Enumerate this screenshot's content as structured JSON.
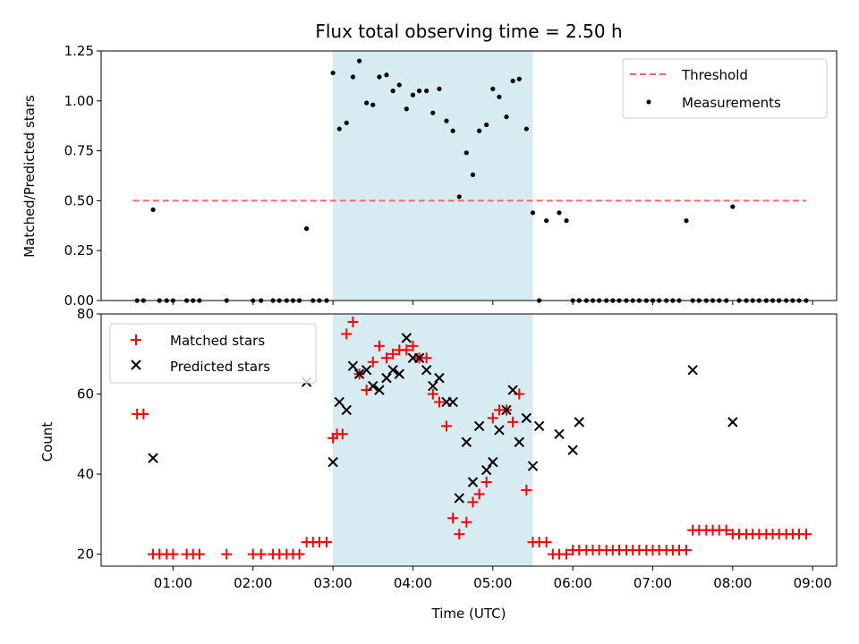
{
  "chart_data": [
    {
      "type": "scatter",
      "panel": "top",
      "title": "Flux total observing time = 2.50 h",
      "xlabel": "",
      "ylabel": "Matched/Predicted stars",
      "xlim": [
        0.1,
        9.3
      ],
      "ylim": [
        0,
        1.25
      ],
      "yticks": [
        0,
        0.25,
        0.5,
        0.75,
        1.0,
        1.25
      ],
      "ytick_labels": [
        "0.00",
        "0.25",
        "0.50",
        "0.75",
        "1.00",
        "1.25"
      ],
      "shaded_region": {
        "x": [
          3.0,
          5.5
        ],
        "color": "#add8e6"
      },
      "legend": {
        "placement": "top-right"
      },
      "series": [
        {
          "name": "Threshold",
          "kind": "line",
          "style": "dashed",
          "color": "#ff6666",
          "x": [
            0.5,
            8.92
          ],
          "y": [
            0.5,
            0.5
          ]
        },
        {
          "name": "Measurements",
          "kind": "scatter",
          "marker": "dot",
          "color": "#000000",
          "x": [
            0.55,
            0.63,
            0.75,
            0.83,
            0.92,
            1.0,
            1.17,
            1.25,
            1.33,
            1.67,
            2.0,
            2.1,
            2.25,
            2.33,
            2.42,
            2.5,
            2.58,
            2.67,
            2.75,
            2.83,
            2.92,
            3.0,
            3.08,
            3.17,
            3.25,
            3.33,
            3.42,
            3.5,
            3.58,
            3.67,
            3.75,
            3.83,
            3.92,
            4.0,
            4.08,
            4.17,
            4.25,
            4.33,
            4.42,
            4.5,
            4.58,
            4.67,
            4.75,
            4.83,
            4.92,
            5.0,
            5.08,
            5.17,
            5.25,
            5.33,
            5.42,
            5.5,
            5.58,
            5.67,
            5.83,
            5.92,
            6.0,
            6.08,
            6.17,
            6.25,
            6.33,
            6.42,
            6.5,
            6.58,
            6.67,
            6.75,
            6.83,
            6.92,
            7.0,
            7.08,
            7.17,
            7.25,
            7.33,
            7.42,
            7.5,
            7.58,
            7.67,
            7.75,
            7.83,
            7.92,
            8.0,
            8.08,
            8.17,
            8.25,
            8.33,
            8.42,
            8.5,
            8.58,
            8.67,
            8.75,
            8.83,
            8.92
          ],
          "y": [
            0,
            0,
            0.455,
            0,
            0,
            0,
            0,
            0,
            0,
            0,
            0,
            0,
            0,
            0,
            0,
            0,
            0,
            0.36,
            0,
            0,
            0,
            1.14,
            0.86,
            0.89,
            1.12,
            1.2,
            0.99,
            0.98,
            1.12,
            1.13,
            1.05,
            1.08,
            0.96,
            1.03,
            1.05,
            1.05,
            0.94,
            1.06,
            0.9,
            0.85,
            0.52,
            0.74,
            0.63,
            0.85,
            0.88,
            1.06,
            1.02,
            0.92,
            1.1,
            1.11,
            0.86,
            0.44,
            0,
            0.4,
            0.44,
            0.4,
            0,
            0,
            0,
            0,
            0,
            0,
            0,
            0,
            0,
            0,
            0,
            0,
            0,
            0,
            0,
            0,
            0,
            0.4,
            0,
            0,
            0,
            0,
            0,
            0,
            0.47,
            0,
            0,
            0,
            0,
            0,
            0,
            0,
            0,
            0,
            0,
            0
          ]
        }
      ]
    },
    {
      "type": "scatter",
      "panel": "bottom",
      "title": "",
      "xlabel": "Time (UTC)",
      "ylabel": "Count",
      "xlim": [
        0.1,
        9.3
      ],
      "ylim": [
        17,
        80
      ],
      "yticks": [
        20,
        40,
        60,
        80
      ],
      "ytick_labels": [
        "20",
        "40",
        "60",
        "80"
      ],
      "xticks": [
        1,
        2,
        3,
        4,
        5,
        6,
        7,
        8,
        9
      ],
      "xtick_labels": [
        "01:00",
        "02:00",
        "03:00",
        "04:00",
        "05:00",
        "06:00",
        "07:00",
        "08:00",
        "09:00"
      ],
      "shaded_region": {
        "x": [
          3.0,
          5.5
        ],
        "color": "#add8e6"
      },
      "legend": {
        "placement": "top-left"
      },
      "series": [
        {
          "name": "Matched stars",
          "kind": "scatter",
          "marker": "plus",
          "color": "#ff0000",
          "x": [
            0.55,
            0.63,
            0.75,
            0.83,
            0.92,
            1.0,
            1.17,
            1.25,
            1.33,
            1.67,
            2.0,
            2.1,
            2.25,
            2.33,
            2.42,
            2.5,
            2.58,
            2.67,
            2.75,
            2.83,
            2.92,
            3.0,
            3.05,
            3.12,
            3.17,
            3.25,
            3.33,
            3.42,
            3.5,
            3.58,
            3.67,
            3.75,
            3.83,
            3.92,
            4.0,
            4.08,
            4.17,
            4.25,
            4.33,
            4.42,
            4.5,
            4.58,
            4.67,
            4.75,
            4.83,
            4.92,
            5.0,
            5.08,
            5.17,
            5.25,
            5.33,
            5.42,
            5.5,
            5.58,
            5.67,
            5.75,
            5.83,
            5.92,
            6.0,
            6.08,
            6.17,
            6.25,
            6.33,
            6.42,
            6.5,
            6.58,
            6.67,
            6.75,
            6.83,
            6.92,
            7.0,
            7.08,
            7.17,
            7.25,
            7.33,
            7.42,
            7.5,
            7.58,
            7.67,
            7.75,
            7.83,
            7.92,
            8.0,
            8.08,
            8.17,
            8.25,
            8.33,
            8.42,
            8.5,
            8.58,
            8.67,
            8.75,
            8.83,
            8.92
          ],
          "y": [
            55,
            55,
            20,
            20,
            20,
            20,
            20,
            20,
            20,
            20,
            20,
            20,
            20,
            20,
            20,
            20,
            20,
            23,
            23,
            23,
            23,
            49,
            50,
            50,
            75,
            78,
            65,
            61,
            68,
            72,
            69,
            70,
            71,
            71,
            72,
            69,
            69,
            60,
            58,
            52,
            29,
            25,
            28,
            33,
            35,
            38,
            54,
            56,
            56,
            53,
            60,
            36,
            23,
            23,
            23,
            20,
            20,
            20,
            21,
            21,
            21,
            21,
            21,
            21,
            21,
            21,
            21,
            21,
            21,
            21,
            21,
            21,
            21,
            21,
            21,
            21,
            26,
            26,
            26,
            26,
            26,
            26,
            25,
            25,
            25,
            25,
            25,
            25,
            25,
            25,
            25,
            25,
            25,
            25
          ]
        },
        {
          "name": "Predicted stars",
          "kind": "scatter",
          "marker": "x",
          "color": "#000000",
          "x": [
            0.75,
            2.67,
            3.0,
            3.08,
            3.17,
            3.25,
            3.33,
            3.42,
            3.5,
            3.58,
            3.67,
            3.75,
            3.83,
            3.92,
            4.0,
            4.08,
            4.17,
            4.25,
            4.33,
            4.42,
            4.5,
            4.58,
            4.67,
            4.75,
            4.83,
            4.92,
            5.0,
            5.08,
            5.17,
            5.25,
            5.33,
            5.42,
            5.5,
            5.58,
            5.83,
            6.0,
            6.08,
            7.5,
            8.0
          ],
          "y": [
            44,
            63,
            43,
            58,
            56,
            67,
            65,
            66,
            62,
            61,
            64,
            66,
            65,
            74,
            69,
            69,
            66,
            62,
            64,
            58,
            58,
            34,
            48,
            38,
            52,
            41,
            43,
            51,
            56,
            61,
            48,
            54,
            42,
            52,
            50,
            46,
            53,
            66,
            53
          ]
        }
      ]
    }
  ]
}
